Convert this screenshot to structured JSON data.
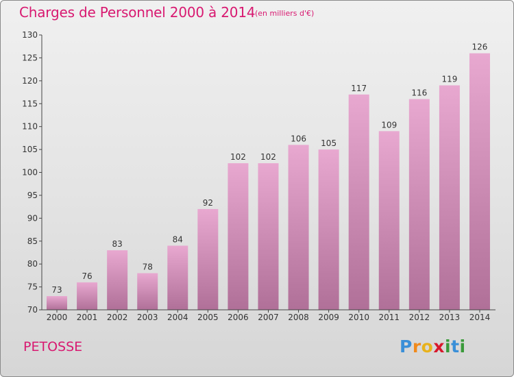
{
  "header": {
    "title": "Charges de Personnel 2000 à 2014",
    "unit": "(en milliers d'€)"
  },
  "footer": {
    "commune": "PETOSSE",
    "logo_text": "Proxiti"
  },
  "colors": {
    "accent": "#d81870",
    "bar_top": "#e8a8d0",
    "bar_bottom": "#b07098"
  },
  "chart_data": {
    "type": "bar",
    "title": "Charges de Personnel 2000 à 2014",
    "subtitle": "(en milliers d'€)",
    "xlabel": "",
    "ylabel": "",
    "categories": [
      "2000",
      "2001",
      "2002",
      "2003",
      "2004",
      "2005",
      "2006",
      "2007",
      "2008",
      "2009",
      "2010",
      "2011",
      "2012",
      "2013",
      "2014"
    ],
    "values": [
      73,
      76,
      83,
      78,
      84,
      92,
      102,
      102,
      106,
      105,
      117,
      109,
      116,
      119,
      126
    ],
    "ylim": [
      70,
      130
    ],
    "yticks": [
      70,
      75,
      80,
      85,
      90,
      95,
      100,
      105,
      110,
      115,
      120,
      125,
      130
    ],
    "grid": false,
    "data_labels": true
  }
}
